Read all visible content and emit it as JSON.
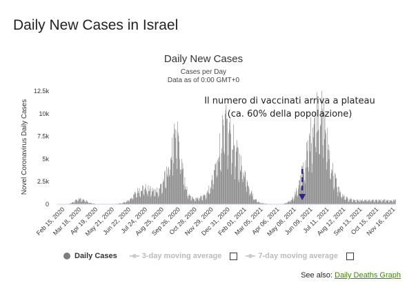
{
  "page": {
    "heading": "Daily New Cases in Israel"
  },
  "see_also": {
    "prefix": "See also: ",
    "link_label": "Daily Deaths Graph"
  },
  "legend": {
    "items": [
      {
        "label": "Daily Cases",
        "active": true,
        "color": "#7d7d7d"
      },
      {
        "label": "3-day moving average",
        "active": false,
        "color": "#cccccc"
      },
      {
        "label": "7-day moving average",
        "active": false,
        "color": "#cccccc"
      }
    ]
  },
  "chart_data": {
    "type": "bar",
    "title": "Daily New Cases",
    "subtitle": [
      "Cases per Day",
      "Data as of 0:00 GMT+0"
    ],
    "xlabel": "",
    "ylabel": "Novel Coronavirus Daily Cases",
    "ylim": [
      0,
      12500
    ],
    "yticks": [
      0,
      2500,
      5000,
      7500,
      10000,
      12500
    ],
    "ytick_labels": [
      "0",
      "2.5k",
      "5k",
      "7.5k",
      "10k",
      "12.5k"
    ],
    "x_range": [
      "2020-02-15",
      "2021-11-24"
    ],
    "xtick_labels": [
      "Feb 15, 2020",
      "Mar 18, 2020",
      "Apr 19, 2020",
      "May 21, 2020",
      "Jun 22, 2020",
      "Jul 24, 2020",
      "Aug 25, 2020",
      "Sep 26, 2020",
      "Oct 28, 2020",
      "Nov 29, 2020",
      "Dec 31, 2020",
      "Feb 01, 2021",
      "Mar 05, 2021",
      "Apr 06, 2021",
      "May 08, 2021",
      "Jun 09, 2021",
      "Jul 11, 2021",
      "Aug 12, 2021",
      "Sep 13, 2021",
      "Oct 15, 2021",
      "Nov 16, 2021"
    ],
    "grid": false,
    "bar_color": "#7d7d7d",
    "series": [
      {
        "name": "Daily Cases",
        "x_start": "2020-02-15",
        "x_step": "7 days",
        "weekly_levels": [
          0,
          0,
          0,
          10,
          150,
          400,
          600,
          550,
          400,
          200,
          80,
          20,
          10,
          10,
          20,
          40,
          50,
          80,
          150,
          300,
          600,
          1000,
          1500,
          1800,
          1900,
          1700,
          1600,
          1500,
          1800,
          2500,
          3500,
          5000,
          7000,
          8000,
          5000,
          2500,
          1000,
          700,
          700,
          800,
          900,
          1200,
          2000,
          3500,
          5500,
          7500,
          9000,
          8500,
          7500,
          6000,
          5000,
          4000,
          3000,
          1500,
          700,
          300,
          150,
          80,
          50,
          30,
          20,
          20,
          50,
          200,
          500,
          1000,
          2000,
          3500,
          5000,
          7000,
          9000,
          10500,
          11000,
          9500,
          7000,
          4500,
          3000,
          1800,
          1000,
          700,
          600,
          500,
          450
        ]
      }
    ],
    "annotation": {
      "lines": [
        "Il numero di vaccinati arriva a plateau",
        "(ca. 60% della popolazione)"
      ],
      "arrow_date": "2021-05-30",
      "arrow_from": 3900,
      "arrow_to": 450,
      "arrow_color": "#2c2487"
    }
  }
}
